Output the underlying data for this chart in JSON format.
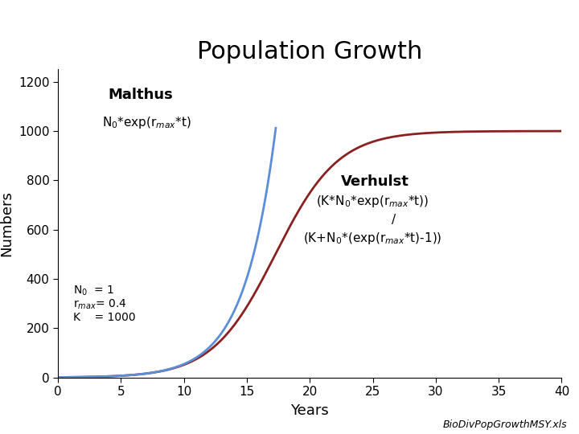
{
  "title": "Population Growth",
  "xlabel": "Years",
  "ylabel": "Numbers",
  "N0": 1,
  "rmax": 0.4,
  "K": 1000,
  "t_malthus_max": 17.3,
  "t_verhulst_max": 40,
  "xlim": [
    0,
    40
  ],
  "ylim": [
    0,
    1250
  ],
  "xticks": [
    0,
    5,
    10,
    15,
    20,
    25,
    30,
    35,
    40
  ],
  "yticks": [
    0,
    200,
    400,
    600,
    800,
    1000,
    1200
  ],
  "malthus_color": "#5B8DD9",
  "verhulst_color": "#8B2020",
  "title_fontsize": 22,
  "axis_label_fontsize": 13,
  "tick_fontsize": 11,
  "annotation_bold_fontsize": 13,
  "annotation_fontsize": 11,
  "params_fontsize": 10,
  "watermark": "BioDivPopGrowthMSY.xls",
  "watermark_fontsize": 9
}
